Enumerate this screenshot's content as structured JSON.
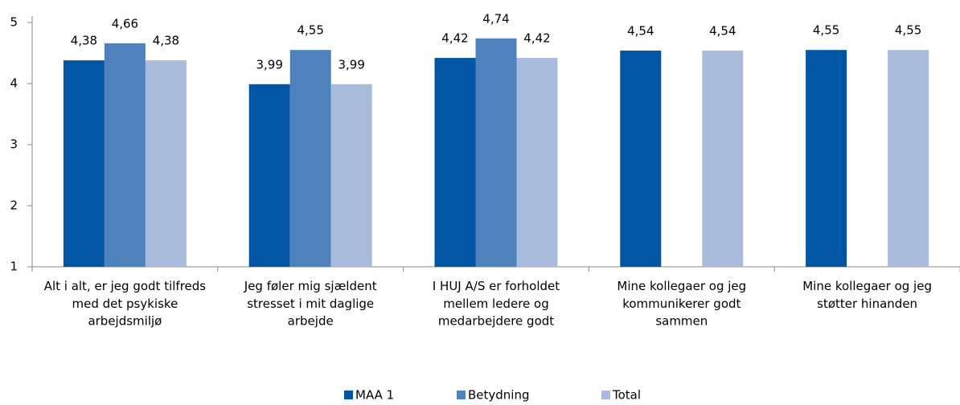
{
  "chart_data": {
    "type": "bar",
    "categories": [
      "Alt i alt, er jeg godt tilfreds\nmed det psykiske\narbejdsmiljø",
      "Jeg føler mig sjældent\nstresset i mit daglige\narbejde",
      "I HUJ A/S er forholdet\nmellem ledere og\nmedarbejdere godt",
      "Mine kollegaer og jeg\nkommunikerer godt\nsammen",
      "Mine kollegaer og jeg\nstøtter hinanden"
    ],
    "series": [
      {
        "name": "MAA 1",
        "color": "#0055a4",
        "values": [
          4.38,
          3.99,
          4.42,
          4.54,
          4.55
        ],
        "value_labels": [
          "4,38",
          "3,99",
          "4,42",
          "4,54",
          "4,55"
        ]
      },
      {
        "name": "Betydning",
        "color": "#4f81bd",
        "values": [
          4.66,
          4.55,
          4.74,
          null,
          null
        ],
        "value_labels": [
          "4,66",
          "4,55",
          "4,74",
          null,
          null
        ]
      },
      {
        "name": "Total",
        "color": "#a9bbdd",
        "values": [
          4.38,
          3.99,
          4.42,
          4.54,
          4.55
        ],
        "value_labels": [
          "4,38",
          "3,99",
          "4,42",
          "4,54",
          "4,55"
        ]
      }
    ],
    "ylim": [
      1,
      5
    ],
    "yticks": [
      1,
      2,
      3,
      4,
      5
    ],
    "grid": false,
    "legend": "bottom"
  }
}
